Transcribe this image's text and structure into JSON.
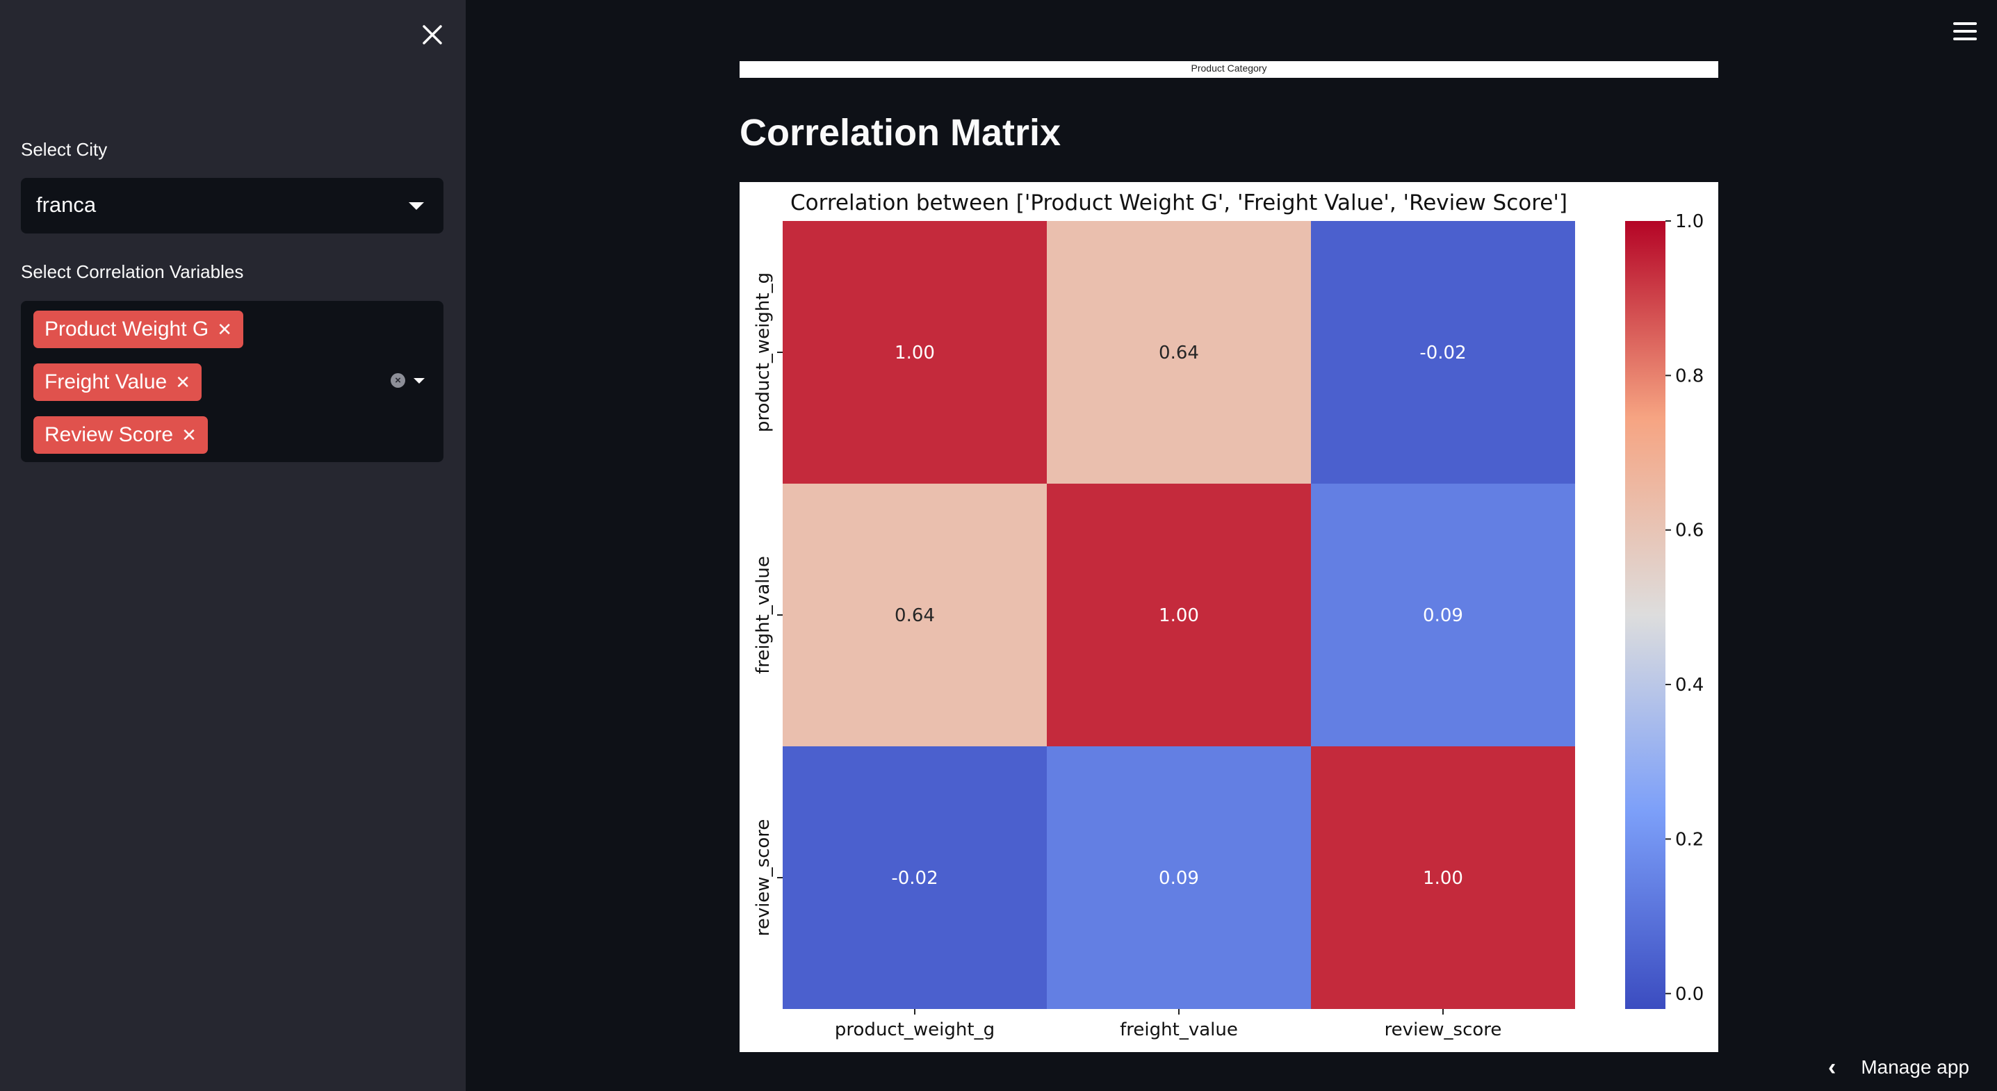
{
  "sidebar": {
    "select_city_label": "Select City",
    "city_value": "franca",
    "corr_vars_label": "Select Correlation Variables",
    "tags": [
      "Product Weight G",
      "Freight Value",
      "Review Score"
    ]
  },
  "previous_chart": {
    "xlabel": "Product Category"
  },
  "main": {
    "title": "Correlation Matrix"
  },
  "manage_app": "Manage app",
  "icons": [
    "close-icon",
    "chevron-down-icon",
    "clear-icon",
    "menu-icon",
    "chevron-left-icon"
  ],
  "colors": {
    "accent": "#e0524d",
    "background": "#0e1117",
    "sidebar": "#262730"
  },
  "chart_data": {
    "type": "heatmap",
    "title": "Correlation between ['Product Weight G', 'Freight Value', 'Review Score']",
    "x": [
      "product_weight_g",
      "freight_value",
      "review_score"
    ],
    "y": [
      "product_weight_g",
      "freight_value",
      "review_score"
    ],
    "values": [
      [
        1.0,
        0.64,
        -0.02
      ],
      [
        0.64,
        1.0,
        0.09
      ],
      [
        -0.02,
        0.09,
        1.0
      ]
    ],
    "value_labels": [
      [
        "1.00",
        "0.64",
        "-0.02"
      ],
      [
        "0.64",
        "1.00",
        "0.09"
      ],
      [
        "-0.02",
        "0.09",
        "1.00"
      ]
    ],
    "colormap": "coolwarm",
    "vmin": -0.02,
    "vmax": 1.0,
    "colorbar_ticks": [
      "0.0",
      "0.2",
      "0.4",
      "0.6",
      "0.8",
      "1.0"
    ],
    "colorbar_tick_values": [
      0.0,
      0.2,
      0.4,
      0.6,
      0.8,
      1.0
    ]
  }
}
